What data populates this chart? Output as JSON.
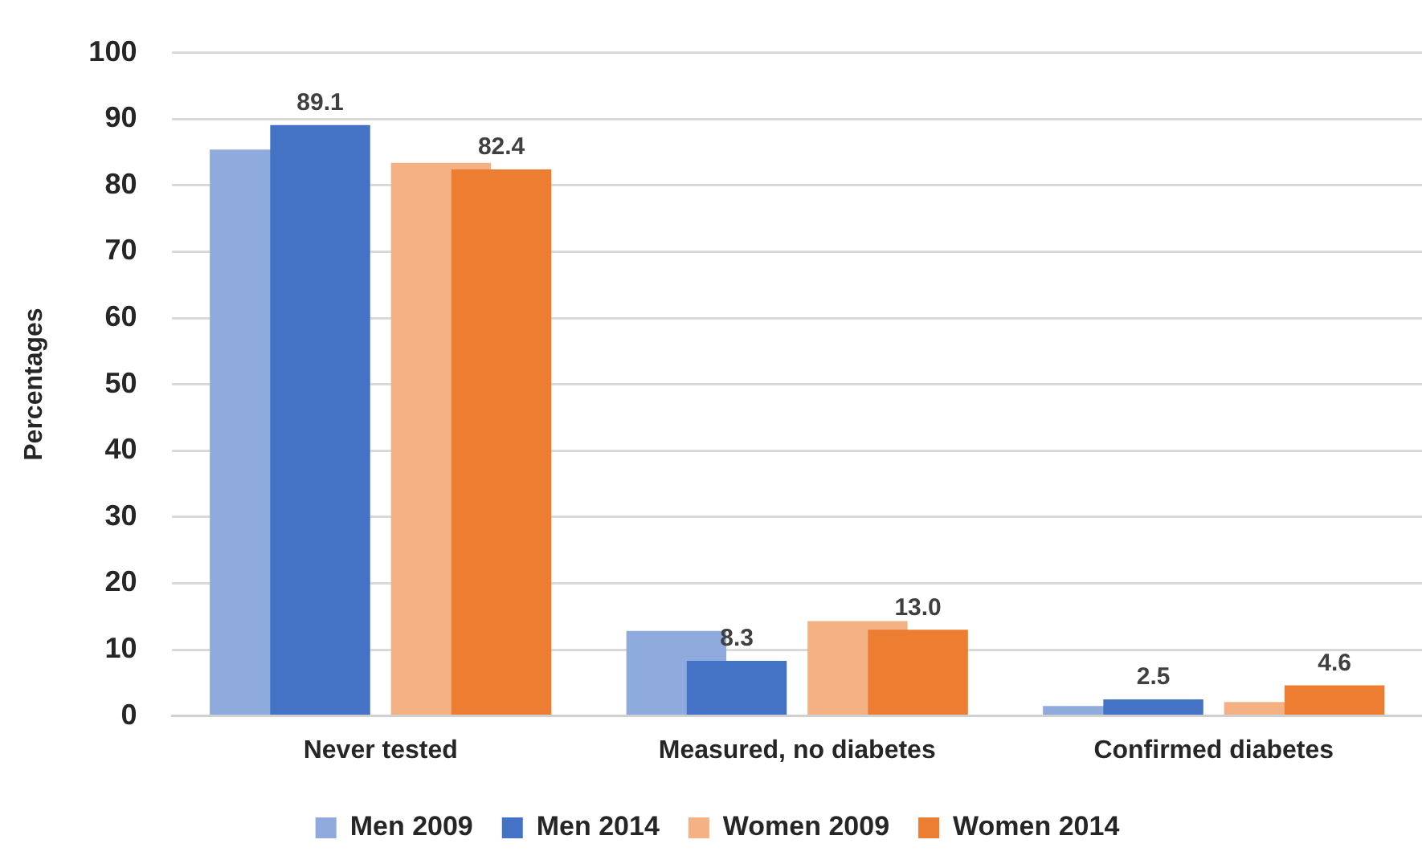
{
  "chart_data": {
    "type": "bar",
    "ylabel": "Percentages",
    "categories": [
      "Never tested",
      "Measured, no diabetes",
      "Confirmed diabetes"
    ],
    "series": [
      {
        "name": "Men 2009",
        "color": "#8faadc",
        "values": [
          85.4,
          12.8,
          1.5
        ]
      },
      {
        "name": "Men 2014",
        "color": "#4472c4",
        "values": [
          89.1,
          8.3,
          2.5
        ],
        "value_labels": [
          "89.1",
          "8.3",
          "2.5"
        ]
      },
      {
        "name": "Women 2009",
        "color": "#f4b183",
        "values": [
          83.4,
          14.3,
          2.1
        ]
      },
      {
        "name": "Women 2014",
        "color": "#ed7d31",
        "values": [
          82.4,
          13.0,
          4.6
        ],
        "value_labels": [
          "82.4",
          "13.0",
          "4.6"
        ]
      }
    ],
    "ylim": [
      0,
      100
    ],
    "yticks": [
      0,
      10,
      20,
      30,
      40,
      50,
      60,
      70,
      80,
      90,
      100
    ],
    "grid": "y",
    "legend": "bottom"
  }
}
